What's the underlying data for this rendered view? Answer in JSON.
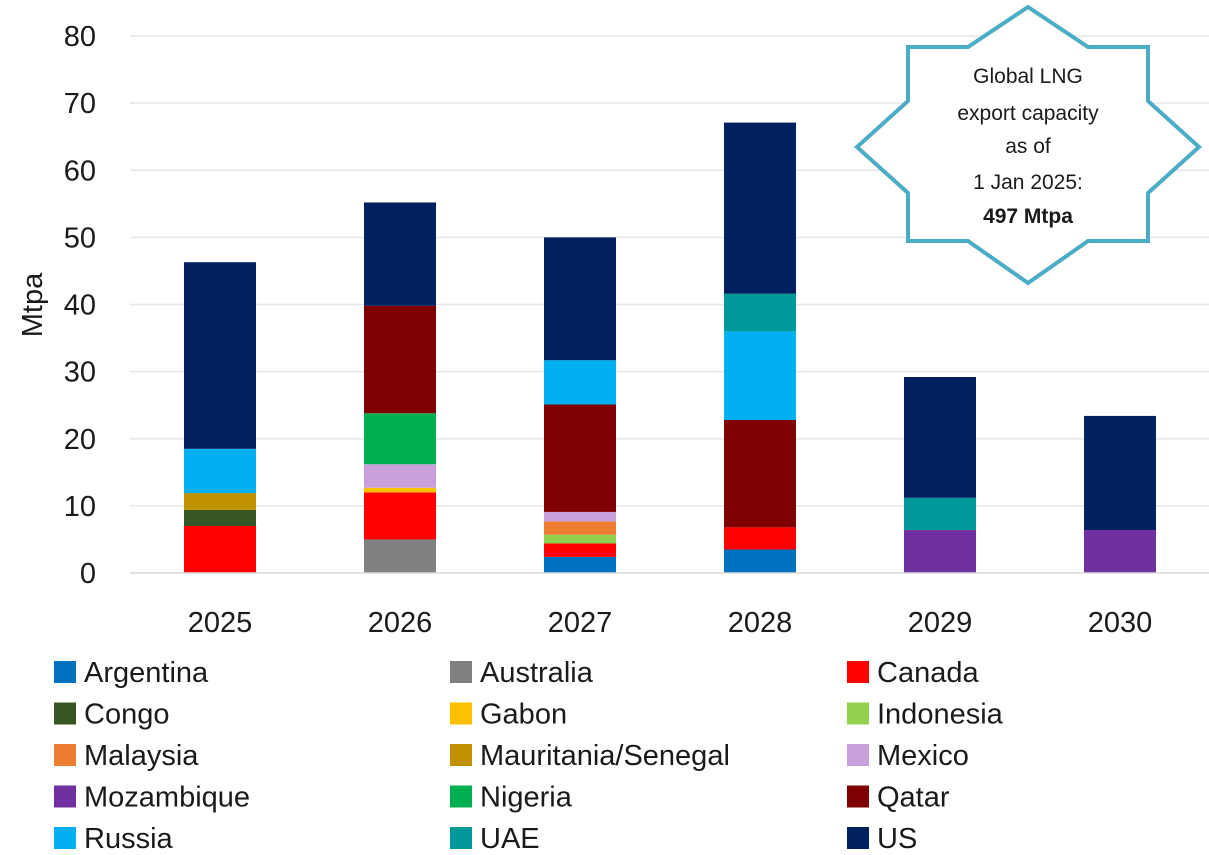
{
  "chart_data": {
    "type": "bar",
    "stacked": true,
    "categories": [
      "2025",
      "2026",
      "2027",
      "2028",
      "2029",
      "2030"
    ],
    "ylabel": "Mtpa",
    "ylim": [
      0,
      80
    ],
    "yticks": [
      0,
      10,
      20,
      30,
      40,
      50,
      60,
      70,
      80
    ],
    "grid": true,
    "legend_position": "bottom",
    "series": [
      {
        "name": "Argentina",
        "color": "#0070C0",
        "values": [
          0,
          0,
          2.4,
          3.5,
          0,
          0
        ]
      },
      {
        "name": "Australia",
        "color": "#808080",
        "values": [
          0,
          5.0,
          0,
          0,
          0,
          0
        ]
      },
      {
        "name": "Canada",
        "color": "#FF0000",
        "values": [
          7.0,
          7.0,
          2.0,
          3.3,
          0,
          0
        ]
      },
      {
        "name": "Congo",
        "color": "#375623",
        "values": [
          2.4,
          0,
          0,
          0,
          0,
          0
        ]
      },
      {
        "name": "Gabon",
        "color": "#FFC000",
        "values": [
          0,
          0.7,
          0,
          0,
          0,
          0
        ]
      },
      {
        "name": "Indonesia",
        "color": "#92D050",
        "values": [
          0,
          0,
          1.3,
          0,
          0,
          0
        ]
      },
      {
        "name": "Malaysia",
        "color": "#ED7D31",
        "values": [
          0,
          0,
          2.0,
          0,
          0,
          0
        ]
      },
      {
        "name": "Mauritania/Senegal",
        "color": "#BF9000",
        "values": [
          2.5,
          0,
          0,
          0,
          0,
          0
        ]
      },
      {
        "name": "Mexico",
        "color": "#C9A0DC",
        "values": [
          0,
          3.5,
          1.4,
          0,
          0,
          0
        ]
      },
      {
        "name": "Mozambique",
        "color": "#7030A0",
        "values": [
          0,
          0,
          0,
          0,
          6.4,
          6.4
        ]
      },
      {
        "name": "Nigeria",
        "color": "#00B050",
        "values": [
          0,
          7.6,
          0,
          0,
          0,
          0
        ]
      },
      {
        "name": "Qatar",
        "color": "#7F0000",
        "values": [
          0,
          16.0,
          16.0,
          16.0,
          0,
          0
        ]
      },
      {
        "name": "Russia",
        "color": "#00B0F0",
        "values": [
          6.6,
          0,
          6.6,
          13.2,
          0,
          0
        ]
      },
      {
        "name": "UAE",
        "color": "#009999",
        "values": [
          0,
          0,
          0,
          5.6,
          4.8,
          0
        ]
      },
      {
        "name": "US",
        "color": "#002060",
        "values": [
          27.8,
          15.4,
          18.3,
          25.5,
          18.0,
          17.0
        ]
      }
    ],
    "annotation": {
      "lines": [
        "Global LNG",
        "export capacity",
        "as of",
        "1 Jan 2025:"
      ],
      "bold_line": "497 Mtpa",
      "border_color": "#4BACC6"
    }
  }
}
